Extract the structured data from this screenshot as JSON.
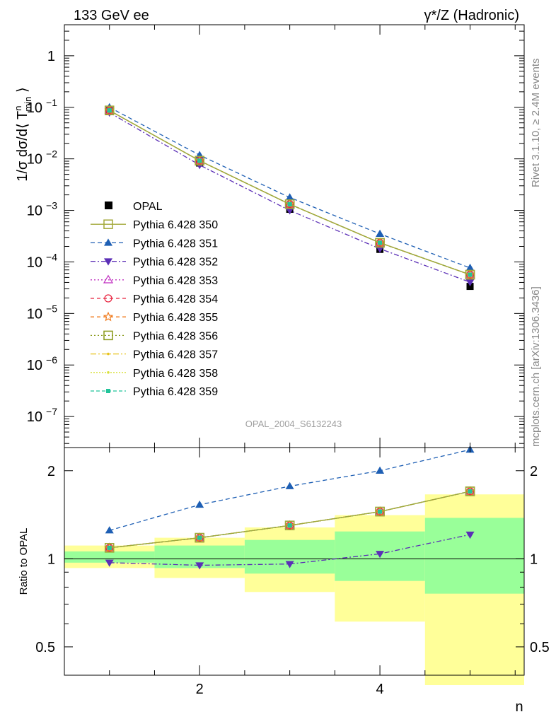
{
  "header": {
    "left": "133 GeV ee",
    "right": "γ*/Z (Hadronic)"
  },
  "side": {
    "rivet": "Rivet 3.1.10, ≥ 2.4M events",
    "mcplots": "mcplots.cern.ch [arXiv:1306.3436]"
  },
  "watermark": "OPAL_2004_S6132243",
  "chart_data": [
    {
      "type": "line",
      "panel": "main",
      "yscale": "log",
      "ylabel_parts": {
        "base": "1/σ dσ/d⟨ T",
        "sup": "n",
        "sub": "min",
        "close": "⟩"
      },
      "ylim": [
        2.5e-08,
        4
      ],
      "xlim": [
        0.5,
        5.6
      ],
      "y_ticklabels": [
        {
          "v": 1,
          "base": "1",
          "exp": ""
        },
        {
          "v": 0.1,
          "base": "10",
          "exp": "−1"
        },
        {
          "v": 0.01,
          "base": "10",
          "exp": "−2"
        },
        {
          "v": 0.001,
          "base": "10",
          "exp": "−3"
        },
        {
          "v": 0.0001,
          "base": "10",
          "exp": "−4"
        },
        {
          "v": 1e-05,
          "base": "10",
          "exp": "−5"
        },
        {
          "v": 1e-06,
          "base": "10",
          "exp": "−6"
        },
        {
          "v": 1e-07,
          "base": "10",
          "exp": "−7"
        }
      ],
      "x": [
        1,
        2,
        3,
        4,
        5
      ],
      "data": {
        "name": "OPAL",
        "values": [
          0.086,
          0.0083,
          0.00105,
          0.000175,
          3.35e-05
        ],
        "color": "#000000"
      },
      "series": [
        {
          "name": "Pythia 6.428 350",
          "color": "#a3a83a",
          "dash": "",
          "marker": "square-open",
          "values": [
            0.087,
            0.0092,
            0.00132,
            0.000235,
            5.65e-05
          ]
        },
        {
          "name": "Pythia 6.428 351",
          "color": "#1e5fb4",
          "dash": "6,4",
          "marker": "triangle-up",
          "values": [
            0.1,
            0.0118,
            0.00178,
            0.00035,
            7.65e-05
          ]
        },
        {
          "name": "Pythia 6.428 352",
          "color": "#5b2fb6",
          "dash": "7,3,2,3",
          "marker": "triangle-down",
          "values": [
            0.079,
            0.0076,
            0.001,
            0.00018,
            4.05e-05
          ]
        },
        {
          "name": "Pythia 6.428 353",
          "color": "#c02ec0",
          "dash": "2,3",
          "marker": "triangle-open",
          "values": [
            0.087,
            0.0092,
            0.00132,
            0.000235,
            5.65e-05
          ]
        },
        {
          "name": "Pythia 6.428 354",
          "color": "#e8203c",
          "dash": "5,4",
          "marker": "circle-open",
          "values": [
            0.087,
            0.0092,
            0.00132,
            0.000235,
            5.65e-05
          ]
        },
        {
          "name": "Pythia 6.428 355",
          "color": "#f07a1c",
          "dash": "5,4",
          "marker": "star-open",
          "values": [
            0.087,
            0.0092,
            0.00132,
            0.000235,
            5.65e-05
          ]
        },
        {
          "name": "Pythia 6.428 356",
          "color": "#8a9a1c",
          "dash": "2,3",
          "marker": "square-open",
          "values": [
            0.087,
            0.0092,
            0.00132,
            0.000235,
            5.65e-05
          ]
        },
        {
          "name": "Pythia 6.428 357",
          "color": "#e8c21a",
          "dash": "8,3,2,3",
          "marker": "dot",
          "values": [
            0.087,
            0.0092,
            0.00132,
            0.000235,
            5.65e-05
          ]
        },
        {
          "name": "Pythia 6.428 358",
          "color": "#d8e03a",
          "dash": "2,2",
          "marker": "dot",
          "values": [
            0.087,
            0.0092,
            0.00132,
            0.000235,
            5.65e-05
          ]
        },
        {
          "name": "Pythia 6.428 359",
          "color": "#22c49a",
          "dash": "5,3",
          "marker": "square-filled",
          "values": [
            0.087,
            0.0092,
            0.00132,
            0.000235,
            5.65e-05
          ]
        }
      ]
    },
    {
      "type": "line",
      "panel": "ratio",
      "ylabel": "Ratio to OPAL",
      "xlabel": "n",
      "yscale": "log",
      "ylim": [
        0.4,
        2.4
      ],
      "xlim": [
        0.5,
        5.6
      ],
      "x_ticklabels": [
        "2",
        "4"
      ],
      "x_ticks": [
        2,
        4
      ],
      "y_ticklabels": [
        "0.5",
        "1",
        "2"
      ],
      "y_ticks": [
        0.5,
        1,
        2
      ],
      "reference": 1,
      "bands": [
        {
          "xlo": 0.5,
          "xhi": 1.5,
          "yellow": [
            0.93,
            1.11
          ],
          "green": [
            0.97,
            1.06
          ]
        },
        {
          "xlo": 1.5,
          "xhi": 2.5,
          "yellow": [
            0.86,
            1.18
          ],
          "green": [
            0.93,
            1.11
          ]
        },
        {
          "xlo": 2.5,
          "xhi": 3.5,
          "yellow": [
            0.77,
            1.28
          ],
          "green": [
            0.89,
            1.16
          ]
        },
        {
          "xlo": 3.5,
          "xhi": 4.5,
          "yellow": [
            0.61,
            1.41
          ],
          "green": [
            0.84,
            1.24
          ]
        },
        {
          "xlo": 4.5,
          "xhi": 5.6,
          "yellow": [
            0.37,
            1.66
          ],
          "green": [
            0.76,
            1.38
          ]
        }
      ],
      "x": [
        1,
        2,
        3,
        4,
        5
      ],
      "series": [
        {
          "name": "Pythia 6.428 350",
          "values": [
            1.09,
            1.18,
            1.3,
            1.45,
            1.7
          ]
        },
        {
          "name": "Pythia 6.428 351",
          "values": [
            1.25,
            1.53,
            1.77,
            2.0,
            2.36
          ]
        },
        {
          "name": "Pythia 6.428 352",
          "values": [
            0.97,
            0.95,
            0.96,
            1.04,
            1.21
          ]
        },
        {
          "name": "Pythia 6.428 353",
          "values": [
            1.09,
            1.18,
            1.3,
            1.45,
            1.7
          ]
        },
        {
          "name": "Pythia 6.428 354",
          "values": [
            1.09,
            1.18,
            1.3,
            1.45,
            1.7
          ]
        },
        {
          "name": "Pythia 6.428 355",
          "values": [
            1.09,
            1.18,
            1.3,
            1.45,
            1.7
          ]
        },
        {
          "name": "Pythia 6.428 356",
          "values": [
            1.09,
            1.18,
            1.3,
            1.45,
            1.7
          ]
        },
        {
          "name": "Pythia 6.428 357",
          "values": [
            1.09,
            1.18,
            1.3,
            1.45,
            1.7
          ]
        },
        {
          "name": "Pythia 6.428 358",
          "values": [
            1.09,
            1.18,
            1.3,
            1.45,
            1.7
          ]
        },
        {
          "name": "Pythia 6.428 359",
          "values": [
            1.09,
            1.18,
            1.3,
            1.45,
            1.7
          ]
        }
      ]
    }
  ]
}
